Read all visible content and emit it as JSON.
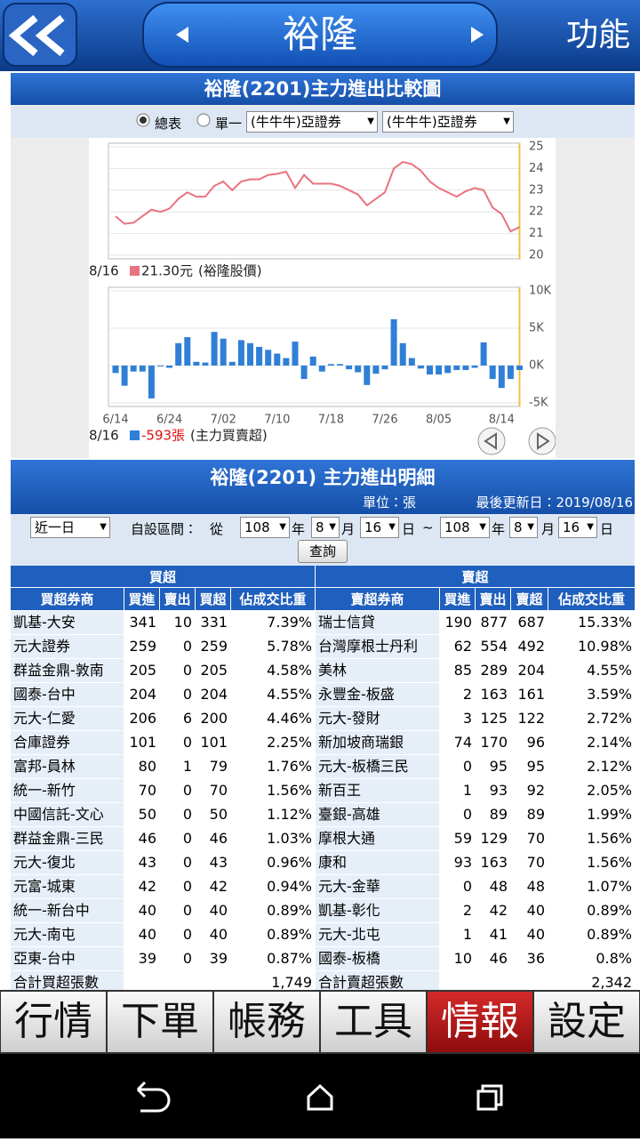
{
  "header": {
    "title": "裕隆",
    "menu": "功能"
  },
  "chart_panel": {
    "title": "裕隆(2201)主力進出比較圖",
    "radio_all": "總表",
    "radio_single": "單一",
    "broker_select_1": "(牛牛牛)亞證券",
    "broker_select_2": "(牛牛牛)亞證券"
  },
  "x_axis": {
    "categories": [
      "6/14",
      null,
      null,
      null,
      null,
      null,
      "6/24",
      null,
      null,
      null,
      null,
      null,
      "7/02",
      null,
      null,
      null,
      null,
      null,
      "7/10",
      null,
      null,
      null,
      null,
      null,
      "7/18",
      null,
      null,
      null,
      null,
      null,
      "7/26",
      null,
      null,
      null,
      null,
      null,
      "8/05",
      null,
      null,
      null,
      null,
      null,
      null,
      "8/14",
      null,
      null
    ]
  },
  "price_chart": {
    "type": "line",
    "color": "#e8737f",
    "ylim": [
      20,
      25
    ],
    "yticks": [
      20,
      21,
      22,
      23,
      24,
      25
    ],
    "grid": true,
    "values": [
      21.8,
      21.45,
      21.5,
      21.8,
      22.1,
      22.0,
      22.15,
      22.6,
      22.9,
      22.7,
      22.7,
      23.2,
      23.4,
      23.0,
      23.4,
      23.5,
      23.5,
      23.7,
      23.75,
      23.85,
      23.1,
      23.7,
      23.3,
      23.3,
      23.3,
      23.2,
      23.0,
      22.8,
      22.3,
      22.6,
      22.9,
      24.0,
      24.3,
      24.2,
      23.9,
      23.4,
      23.1,
      22.9,
      22.7,
      22.95,
      23.1,
      23.0,
      22.2,
      21.9,
      21.1,
      21.3
    ],
    "legend": {
      "date": "8/16",
      "value": "21.30元",
      "name": "(裕隆股價)"
    }
  },
  "volume_chart": {
    "type": "bar",
    "color": "#2f7fd6",
    "ylim": [
      -5000,
      10000
    ],
    "grid": true,
    "yticks": [
      {
        "value": -5000,
        "label": "-5K"
      },
      {
        "value": 0,
        "label": "0K"
      },
      {
        "value": 5000,
        "label": "5K"
      },
      {
        "value": 10000,
        "label": "10K"
      }
    ],
    "values": [
      -1000,
      -2700,
      -800,
      -800,
      -4400,
      0,
      -300,
      3000,
      3800,
      500,
      400,
      4500,
      3600,
      500,
      3400,
      3000,
      2500,
      2100,
      1600,
      1000,
      3200,
      -1800,
      1200,
      -800,
      200,
      200,
      -500,
      -900,
      -2600,
      -1100,
      -500,
      6200,
      3000,
      1000,
      -400,
      -1200,
      -1200,
      -1000,
      -600,
      -600,
      -300,
      3100,
      -1800,
      -3000,
      -1800,
      -593
    ],
    "legend": {
      "date": "8/16",
      "value": "-593張",
      "name": "(主力買賣超)"
    }
  },
  "detail": {
    "title": "裕隆(2201) 主力進出明細",
    "unit": "單位：張",
    "updated": "最後更新日：2019/08/16",
    "period": "近一日",
    "custom_range": "自設區間：",
    "from": "從",
    "start": {
      "year": "108",
      "month": "8",
      "day": "16"
    },
    "end": {
      "year": "108",
      "month": "8",
      "day": "16"
    },
    "year_label": "年",
    "month_label": "月",
    "day_label": "日",
    "tilde": "~",
    "query": "查詢"
  },
  "table": {
    "buy_header": "買超",
    "sell_header": "賣超",
    "buy_columns": [
      "買超券商",
      "買進",
      "賣出",
      "買超",
      "佔成交比重"
    ],
    "sell_columns": [
      "賣超券商",
      "買進",
      "賣出",
      "賣超",
      "佔成交比重"
    ],
    "buy_rows": [
      [
        "凱基-大安",
        341,
        10,
        331,
        "7.39%"
      ],
      [
        "元大證券",
        259,
        0,
        259,
        "5.78%"
      ],
      [
        "群益金鼎-敦南",
        205,
        0,
        205,
        "4.58%"
      ],
      [
        "國泰-台中",
        204,
        0,
        204,
        "4.55%"
      ],
      [
        "元大-仁愛",
        206,
        6,
        200,
        "4.46%"
      ],
      [
        "合庫證券",
        101,
        0,
        101,
        "2.25%"
      ],
      [
        "富邦-員林",
        80,
        1,
        79,
        "1.76%"
      ],
      [
        "統一-新竹",
        70,
        0,
        70,
        "1.56%"
      ],
      [
        "中國信託-文心",
        50,
        0,
        50,
        "1.12%"
      ],
      [
        "群益金鼎-三民",
        46,
        0,
        46,
        "1.03%"
      ],
      [
        "元大-復北",
        43,
        0,
        43,
        "0.96%"
      ],
      [
        "元富-城東",
        42,
        0,
        42,
        "0.94%"
      ],
      [
        "統一-新台中",
        40,
        0,
        40,
        "0.89%"
      ],
      [
        "元大-南屯",
        40,
        0,
        40,
        "0.89%"
      ],
      [
        "亞東-台中",
        39,
        0,
        39,
        "0.87%"
      ]
    ],
    "sell_rows": [
      [
        "瑞士信貸",
        190,
        877,
        687,
        "15.33%"
      ],
      [
        "台灣摩根士丹利",
        62,
        554,
        492,
        "10.98%"
      ],
      [
        "美林",
        85,
        289,
        204,
        "4.55%"
      ],
      [
        "永豐金-板盛",
        2,
        163,
        161,
        "3.59%"
      ],
      [
        "元大-發財",
        3,
        125,
        122,
        "2.72%"
      ],
      [
        "新加坡商瑞銀",
        74,
        170,
        96,
        "2.14%"
      ],
      [
        "元大-板橋三民",
        0,
        95,
        95,
        "2.12%"
      ],
      [
        "新百王",
        1,
        93,
        92,
        "2.05%"
      ],
      [
        "臺銀-高雄",
        0,
        89,
        89,
        "1.99%"
      ],
      [
        "摩根大通",
        59,
        129,
        70,
        "1.56%"
      ],
      [
        "康和",
        93,
        163,
        70,
        "1.56%"
      ],
      [
        "元大-金華",
        0,
        48,
        48,
        "1.07%"
      ],
      [
        "凱基-彰化",
        2,
        42,
        40,
        "0.89%"
      ],
      [
        "元大-北屯",
        1,
        41,
        40,
        "0.89%"
      ],
      [
        "國泰-板橋",
        10,
        46,
        36,
        "0.8%"
      ]
    ],
    "buy_total_label": "合計買超張數",
    "buy_total": "1,749",
    "sell_total_label": "合計賣超張數",
    "sell_total": "2,342"
  },
  "tabs": [
    "行情",
    "下單",
    "帳務",
    "工具",
    "情報",
    "設定"
  ],
  "active_tab": 4
}
